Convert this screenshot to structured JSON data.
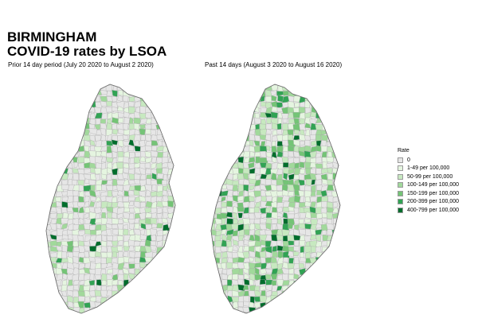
{
  "title": {
    "line1": "BIRMINGHAM",
    "line2": "COVID-19 rates by LSOA"
  },
  "panels": [
    {
      "subtitle": "Prior 14 day period (July 20 2020 to August  2 2020)"
    },
    {
      "subtitle": "Past 14 days (August  3 2020 to August 16 2020)"
    }
  ],
  "legend": {
    "title": "Rate",
    "items": [
      {
        "label": "0",
        "color": "#e6e6e6"
      },
      {
        "label": "1-49 per 100,000",
        "color": "#e5f5e0"
      },
      {
        "label": "50-99 per 100,000",
        "color": "#c7e9c0"
      },
      {
        "label": "100-149 per 100,000",
        "color": "#a1d99b"
      },
      {
        "label": "150-199 per 100,000",
        "color": "#74c476"
      },
      {
        "label": "200-399 per 100,000",
        "color": "#31a354"
      },
      {
        "label": "400-799 per 100,000",
        "color": "#006d2c"
      }
    ]
  }
}
